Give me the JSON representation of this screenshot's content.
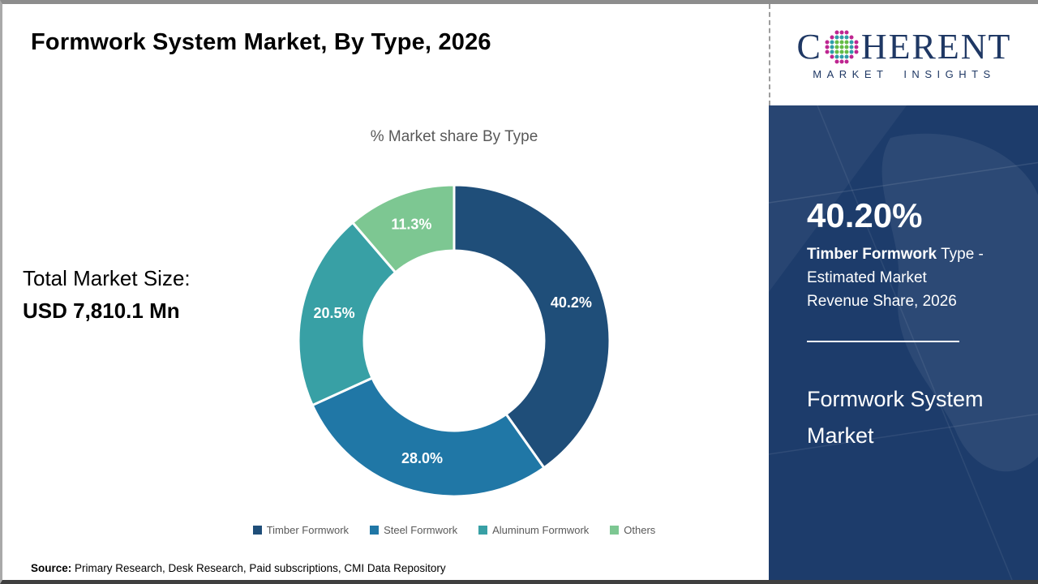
{
  "page": {
    "title": "Formwork System Market, By Type, 2026"
  },
  "logo": {
    "name": "Coherent Market Insights",
    "word_start": "C",
    "word_end": "HERENT",
    "tagline": "MARKET INSIGHTS",
    "navy": "#1F3864",
    "dot_magenta": "#BE2590",
    "dot_teal": "#2F9DA8",
    "dot_green": "#64BC46"
  },
  "stats": {
    "total_label": "Total Market Size:",
    "total_value": "USD 7,810.1 Mn"
  },
  "chart_data": {
    "type": "pie",
    "variant": "donut",
    "title": "% Market share By Type",
    "categories": [
      "Timber Formwork",
      "Steel Formwork",
      "Aluminum Formwork",
      "Others"
    ],
    "values": [
      40.2,
      28.0,
      20.5,
      11.3
    ],
    "labels": [
      "40.2%",
      "28.0%",
      "20.5%",
      "11.3%"
    ],
    "colors": [
      "#1F4E79",
      "#2077A6",
      "#38A0A5",
      "#7DC792"
    ],
    "start_angle_deg": 0,
    "clockwise": true,
    "inner_radius_ratio": 0.578,
    "legend_position": "bottom"
  },
  "sidebar": {
    "stat_value": "40.20%",
    "desc_bold": "Timber Formwork",
    "desc_line1_rest": " Type -",
    "desc_line2": "Estimated Market",
    "desc_line3": "Revenue Share, 2026",
    "product_line1": "Formwork System",
    "product_line2": "Market",
    "bg_color": "#1d3c6b"
  },
  "footer": {
    "source_label": "Source:",
    "source_text": " Primary Research, Desk Research, Paid subscriptions, CMI Data Repository"
  }
}
